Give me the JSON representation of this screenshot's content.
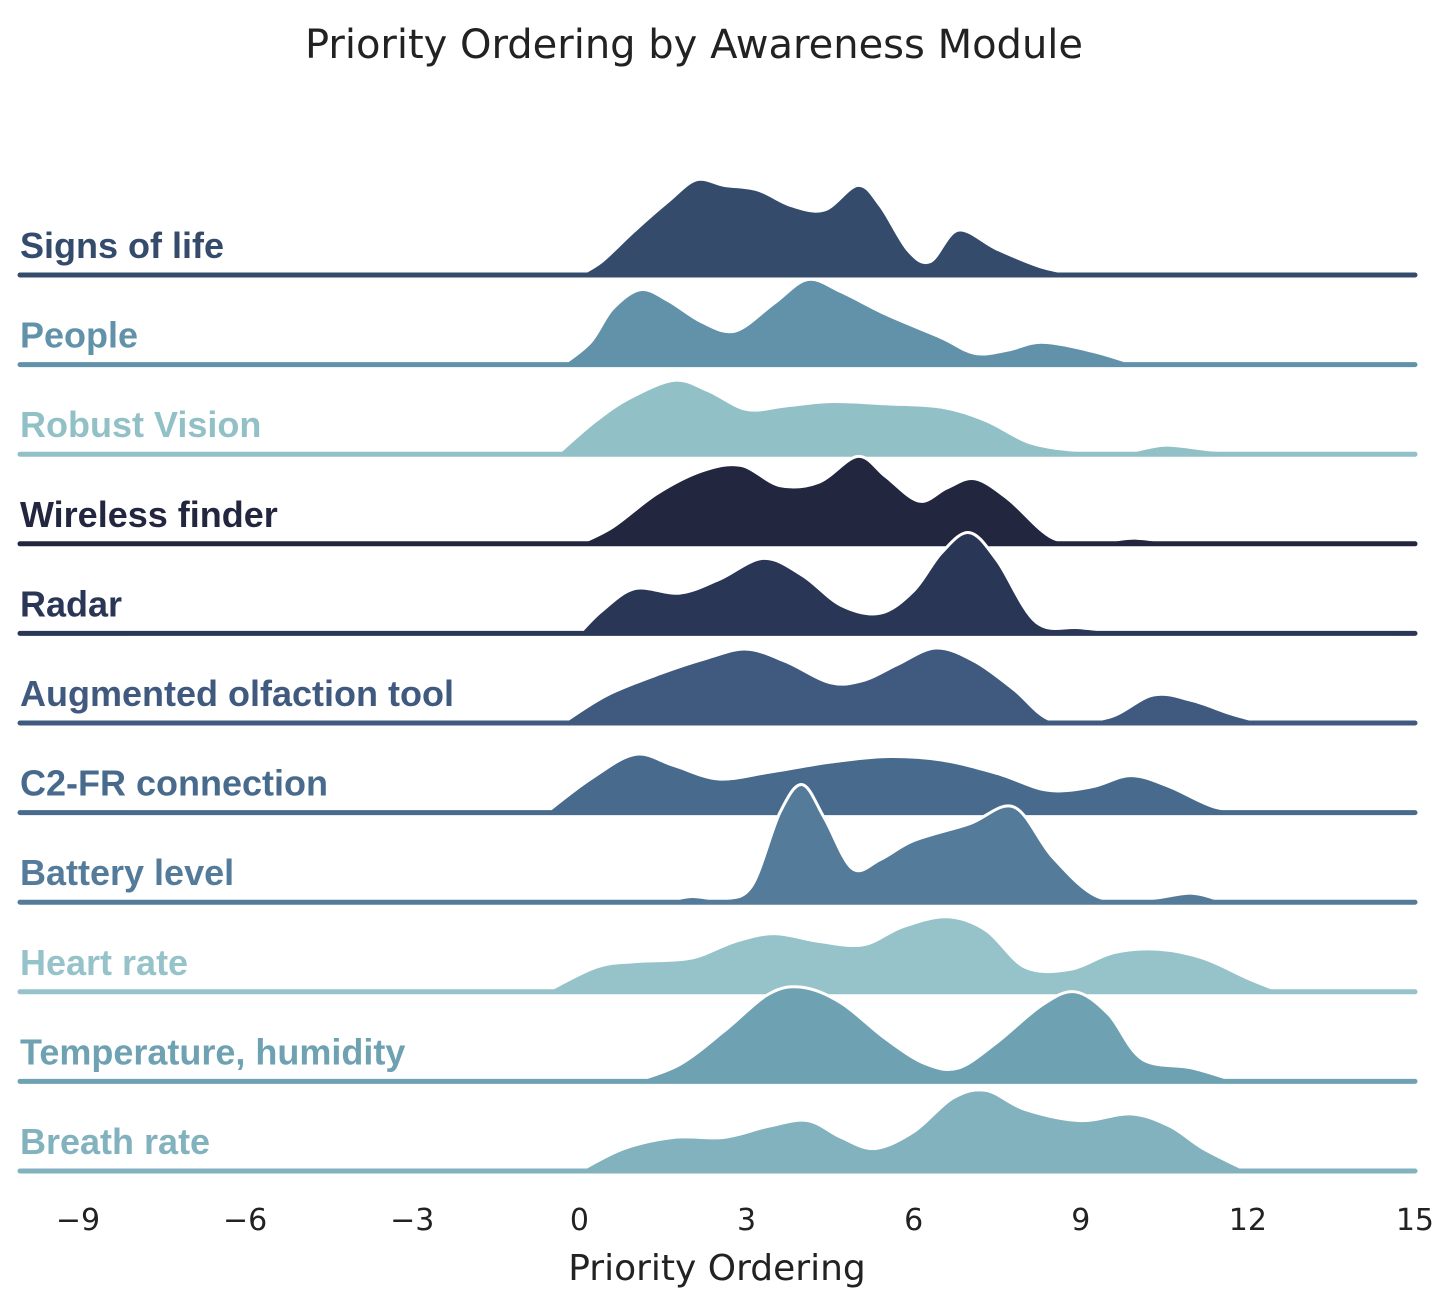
{
  "chart_data": {
    "type": "ridgeline",
    "title": "Priority Ordering by Awareness Module",
    "xlabel": "Priority Ordering",
    "ylabel": "",
    "xlim": [
      -9,
      15
    ],
    "xticks": [
      -9,
      -6,
      -3,
      0,
      3,
      6,
      9,
      12,
      15
    ],
    "xtick_labels": [
      "−9",
      "−6",
      "−3",
      "0",
      "3",
      "6",
      "9",
      "12",
      "15"
    ],
    "series": [
      {
        "name": "Signs of life",
        "color": "#344b6c",
        "points": [
          [
            0,
            0
          ],
          [
            0.4,
            0.12
          ],
          [
            1,
            0.4
          ],
          [
            1.6,
            0.66
          ],
          [
            2.1,
            0.85
          ],
          [
            2.6,
            0.8
          ],
          [
            3.2,
            0.76
          ],
          [
            3.8,
            0.62
          ],
          [
            4.4,
            0.58
          ],
          [
            5,
            0.8
          ],
          [
            5.4,
            0.62
          ],
          [
            5.9,
            0.22
          ],
          [
            6.3,
            0.12
          ],
          [
            6.8,
            0.4
          ],
          [
            7.5,
            0.23
          ],
          [
            8.3,
            0.07
          ],
          [
            9,
            0
          ]
        ]
      },
      {
        "name": "People",
        "color": "#6292aa",
        "points": [
          [
            -0.3,
            0
          ],
          [
            0.2,
            0.2
          ],
          [
            0.6,
            0.5
          ],
          [
            1.1,
            0.67
          ],
          [
            1.6,
            0.57
          ],
          [
            2.2,
            0.38
          ],
          [
            2.8,
            0.3
          ],
          [
            3.5,
            0.55
          ],
          [
            4.1,
            0.76
          ],
          [
            4.7,
            0.65
          ],
          [
            5.5,
            0.45
          ],
          [
            6.5,
            0.24
          ],
          [
            7.1,
            0.1
          ],
          [
            7.7,
            0.13
          ],
          [
            8.3,
            0.2
          ],
          [
            9.2,
            0.12
          ],
          [
            10,
            0
          ]
        ]
      },
      {
        "name": "Robust Vision",
        "color": "#91c0c6",
        "points": [
          [
            -0.4,
            0
          ],
          [
            0.3,
            0.3
          ],
          [
            0.9,
            0.5
          ],
          [
            1.7,
            0.66
          ],
          [
            2.3,
            0.57
          ],
          [
            3,
            0.4
          ],
          [
            3.7,
            0.43
          ],
          [
            4.5,
            0.47
          ],
          [
            5.5,
            0.45
          ],
          [
            6.5,
            0.42
          ],
          [
            7.3,
            0.3
          ],
          [
            8.1,
            0.1
          ],
          [
            9,
            0.03
          ],
          [
            9.8,
            0.02
          ],
          [
            10.5,
            0.08
          ],
          [
            11.3,
            0.04
          ],
          [
            12.2,
            0
          ]
        ]
      },
      {
        "name": "Wireless finder",
        "color": "#22263f",
        "points": [
          [
            0,
            0
          ],
          [
            0.6,
            0.15
          ],
          [
            1.4,
            0.45
          ],
          [
            2.2,
            0.65
          ],
          [
            2.9,
            0.7
          ],
          [
            3.6,
            0.52
          ],
          [
            4.3,
            0.55
          ],
          [
            5,
            0.78
          ],
          [
            5.5,
            0.6
          ],
          [
            6.1,
            0.38
          ],
          [
            6.6,
            0.5
          ],
          [
            7.1,
            0.58
          ],
          [
            7.7,
            0.4
          ],
          [
            8.5,
            0.05
          ],
          [
            9.3,
            0.02
          ],
          [
            10,
            0.05
          ],
          [
            10.7,
            0
          ]
        ]
      },
      {
        "name": "Radar",
        "color": "#2a3656",
        "points": [
          [
            0,
            0
          ],
          [
            0.4,
            0.2
          ],
          [
            1,
            0.4
          ],
          [
            1.8,
            0.36
          ],
          [
            2.5,
            0.48
          ],
          [
            3.3,
            0.67
          ],
          [
            4,
            0.52
          ],
          [
            4.7,
            0.25
          ],
          [
            5.4,
            0.18
          ],
          [
            6,
            0.38
          ],
          [
            6.5,
            0.72
          ],
          [
            7,
            0.9
          ],
          [
            7.5,
            0.65
          ],
          [
            8.2,
            0.1
          ],
          [
            9,
            0.05
          ],
          [
            10,
            0
          ]
        ]
      },
      {
        "name": "Augmented olfaction tool",
        "color": "#405a7f",
        "points": [
          [
            -0.3,
            0
          ],
          [
            0.5,
            0.25
          ],
          [
            1.5,
            0.45
          ],
          [
            2.3,
            0.58
          ],
          [
            3,
            0.66
          ],
          [
            3.7,
            0.55
          ],
          [
            4.5,
            0.36
          ],
          [
            5.1,
            0.38
          ],
          [
            5.7,
            0.52
          ],
          [
            6.4,
            0.67
          ],
          [
            7.1,
            0.55
          ],
          [
            7.8,
            0.3
          ],
          [
            8.5,
            0.02
          ],
          [
            9.5,
            0.05
          ],
          [
            10.3,
            0.25
          ],
          [
            11,
            0.2
          ],
          [
            11.7,
            0.08
          ],
          [
            12.3,
            0
          ]
        ]
      },
      {
        "name": "C2-FR connection",
        "color": "#486b8d",
        "points": [
          [
            -0.6,
            0
          ],
          [
            0.2,
            0.3
          ],
          [
            1,
            0.52
          ],
          [
            1.7,
            0.42
          ],
          [
            2.5,
            0.3
          ],
          [
            3.4,
            0.36
          ],
          [
            4.5,
            0.45
          ],
          [
            5.5,
            0.5
          ],
          [
            6.5,
            0.47
          ],
          [
            7.5,
            0.35
          ],
          [
            8.4,
            0.2
          ],
          [
            9.2,
            0.23
          ],
          [
            9.9,
            0.33
          ],
          [
            10.6,
            0.23
          ],
          [
            11.4,
            0.05
          ],
          [
            12.2,
            0
          ]
        ]
      },
      {
        "name": "Battery level",
        "color": "#557b9a",
        "points": [
          [
            1.5,
            0
          ],
          [
            2,
            0.05
          ],
          [
            2.6,
            0.03
          ],
          [
            3.1,
            0.15
          ],
          [
            3.6,
            0.8
          ],
          [
            4,
            1.05
          ],
          [
            4.4,
            0.75
          ],
          [
            4.9,
            0.3
          ],
          [
            5.4,
            0.38
          ],
          [
            6,
            0.55
          ],
          [
            7,
            0.7
          ],
          [
            7.8,
            0.85
          ],
          [
            8.5,
            0.4
          ],
          [
            9.3,
            0.05
          ],
          [
            10.2,
            0.03
          ],
          [
            11,
            0.08
          ],
          [
            11.6,
            0
          ]
        ]
      },
      {
        "name": "Heart rate",
        "color": "#95c3c9",
        "points": [
          [
            -0.6,
            0
          ],
          [
            0.3,
            0.22
          ],
          [
            1,
            0.27
          ],
          [
            2,
            0.3
          ],
          [
            2.8,
            0.45
          ],
          [
            3.5,
            0.52
          ],
          [
            4.3,
            0.45
          ],
          [
            5.1,
            0.42
          ],
          [
            5.8,
            0.58
          ],
          [
            6.6,
            0.67
          ],
          [
            7.3,
            0.55
          ],
          [
            8,
            0.22
          ],
          [
            8.8,
            0.2
          ],
          [
            9.6,
            0.35
          ],
          [
            10.4,
            0.38
          ],
          [
            11.2,
            0.3
          ],
          [
            12,
            0.12
          ],
          [
            12.6,
            0
          ]
        ]
      },
      {
        "name": "Temperature, humidity",
        "color": "#6ea1b2",
        "points": [
          [
            1,
            0
          ],
          [
            1.8,
            0.15
          ],
          [
            2.6,
            0.45
          ],
          [
            3.4,
            0.78
          ],
          [
            4,
            0.84
          ],
          [
            4.7,
            0.7
          ],
          [
            5.5,
            0.38
          ],
          [
            6.2,
            0.16
          ],
          [
            6.8,
            0.12
          ],
          [
            7.5,
            0.35
          ],
          [
            8.3,
            0.68
          ],
          [
            8.9,
            0.8
          ],
          [
            9.5,
            0.6
          ],
          [
            10.1,
            0.2
          ],
          [
            11,
            0.12
          ],
          [
            11.8,
            0
          ]
        ]
      },
      {
        "name": "Breath rate",
        "color": "#82b2be",
        "points": [
          [
            0,
            0
          ],
          [
            0.8,
            0.2
          ],
          [
            1.7,
            0.3
          ],
          [
            2.6,
            0.3
          ],
          [
            3.4,
            0.4
          ],
          [
            4.1,
            0.45
          ],
          [
            4.7,
            0.3
          ],
          [
            5.3,
            0.2
          ],
          [
            6,
            0.35
          ],
          [
            6.7,
            0.65
          ],
          [
            7.3,
            0.72
          ],
          [
            8,
            0.55
          ],
          [
            9,
            0.45
          ],
          [
            9.9,
            0.51
          ],
          [
            10.6,
            0.4
          ],
          [
            11.2,
            0.2
          ],
          [
            12,
            0
          ]
        ]
      }
    ]
  }
}
